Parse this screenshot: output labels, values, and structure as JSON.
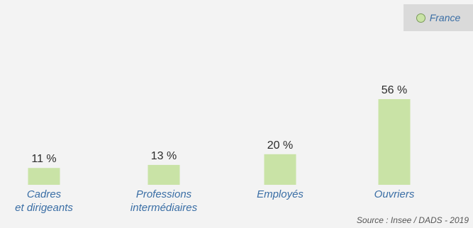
{
  "legend": {
    "label": "France",
    "color": "#c9e3a6"
  },
  "source": "Source : Insee / DADS - 2019",
  "chart_data": {
    "type": "bar",
    "categories": [
      [
        "Cadres",
        "et dirigeants"
      ],
      [
        "Professions",
        "intermédiaires"
      ],
      [
        "Employés"
      ],
      [
        "Ouvriers"
      ]
    ],
    "series": [
      {
        "name": "France",
        "values": [
          11,
          13,
          20,
          56
        ],
        "color": "#c9e3a6"
      }
    ],
    "value_labels": [
      "11 %",
      "13 %",
      "20 %",
      "56 %"
    ],
    "unit": "%",
    "ylim": [
      0,
      56
    ],
    "grid": false,
    "legend_position": "top-right"
  }
}
